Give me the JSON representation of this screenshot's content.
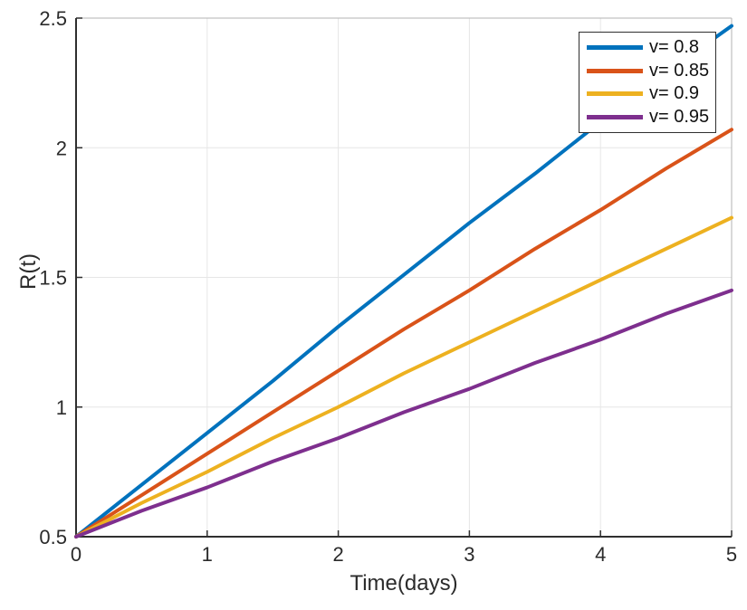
{
  "figure": {
    "background": "#ffffff"
  },
  "chart_data": {
    "type": "line",
    "title": "",
    "xlabel": "Time(days)",
    "ylabel": "R(t)",
    "xlim": [
      0,
      5
    ],
    "ylim": [
      0.5,
      2.5
    ],
    "xticks": [
      0,
      1,
      2,
      3,
      4,
      5
    ],
    "xtick_labels": [
      "0",
      "1",
      "2",
      "3",
      "4",
      "5"
    ],
    "yticks": [
      0.5,
      1,
      1.5,
      2,
      2.5
    ],
    "ytick_labels": [
      "0.5",
      "1",
      "1.5",
      "2",
      "2.5"
    ],
    "grid": true,
    "legend_position": "top-right",
    "line_width": 4,
    "x": [
      0,
      0.5,
      1,
      1.5,
      2,
      2.5,
      3,
      3.5,
      4,
      4.5,
      5
    ],
    "series": [
      {
        "name": "v= 0.8",
        "color": "#0072BD",
        "values": [
          0.5,
          0.7,
          0.9,
          1.1,
          1.31,
          1.51,
          1.71,
          1.9,
          2.1,
          2.29,
          2.47
        ]
      },
      {
        "name": "v= 0.85",
        "color": "#D95319",
        "values": [
          0.5,
          0.66,
          0.82,
          0.98,
          1.14,
          1.3,
          1.45,
          1.61,
          1.76,
          1.92,
          2.07
        ]
      },
      {
        "name": "v= 0.9",
        "color": "#EDB120",
        "values": [
          0.5,
          0.63,
          0.75,
          0.88,
          1.0,
          1.13,
          1.25,
          1.37,
          1.49,
          1.61,
          1.73
        ]
      },
      {
        "name": "v= 0.95",
        "color": "#7E2F8E",
        "values": [
          0.5,
          0.6,
          0.69,
          0.79,
          0.88,
          0.98,
          1.07,
          1.17,
          1.26,
          1.36,
          1.45
        ]
      }
    ],
    "colors": {
      "grid": "#e6e6e6",
      "axis_dark": "#2f2f2f",
      "axis_light": "#b3b3b3",
      "tick_text": "#2b2b2b"
    }
  }
}
